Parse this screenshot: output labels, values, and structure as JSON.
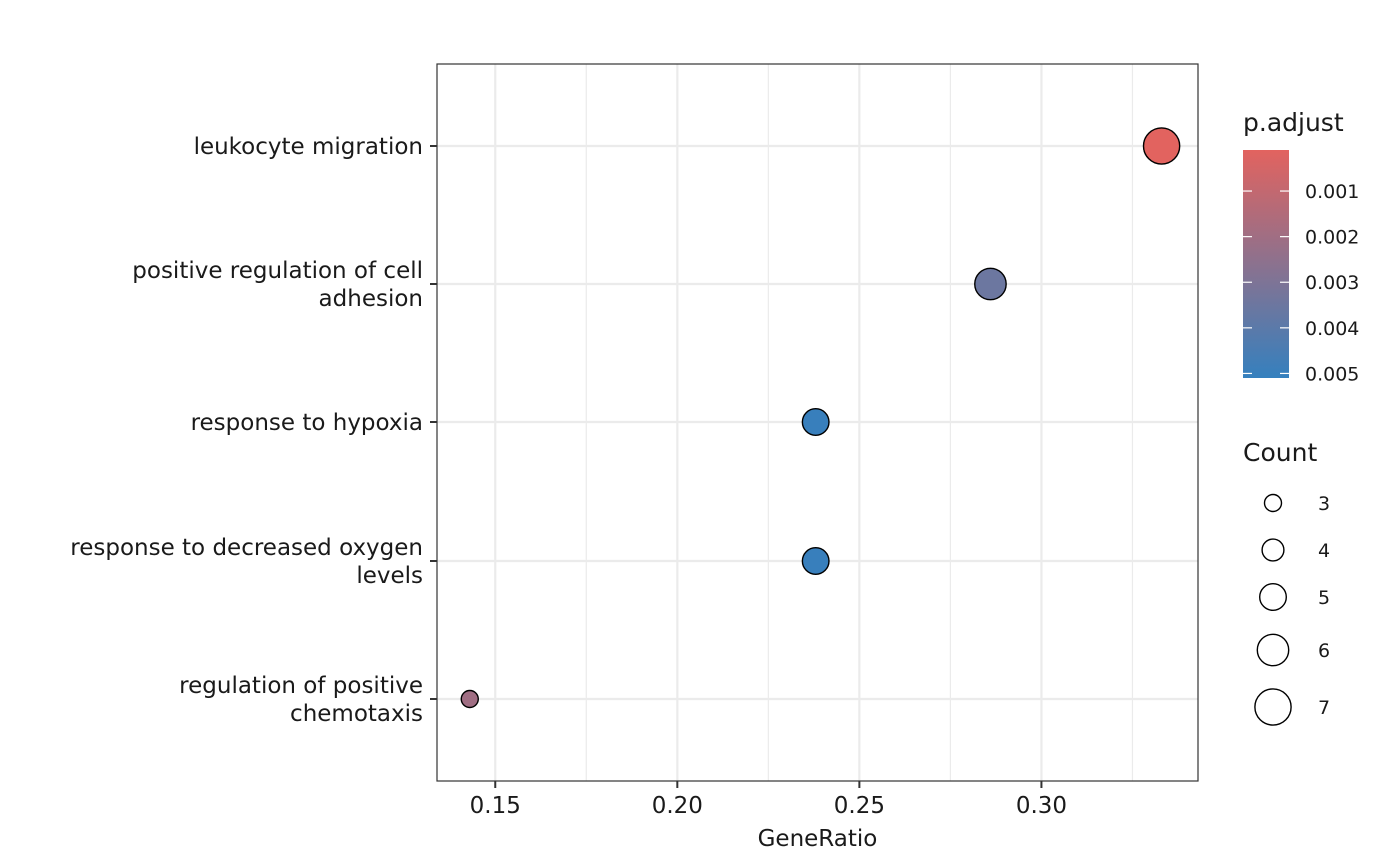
{
  "chart_data": {
    "type": "scatter",
    "xlabel": "GeneRatio",
    "ylabel": "",
    "xlim": [
      0.134,
      0.343
    ],
    "x_ticks": [
      {
        "value": 0.15,
        "label": "0.15"
      },
      {
        "value": 0.2,
        "label": "0.20"
      },
      {
        "value": 0.25,
        "label": "0.25"
      },
      {
        "value": 0.3,
        "label": "0.30"
      }
    ],
    "categories": [
      {
        "lines": [
          "leukocyte migration"
        ]
      },
      {
        "lines": [
          "positive regulation of cell",
          "adhesion"
        ]
      },
      {
        "lines": [
          "response to hypoxia"
        ]
      },
      {
        "lines": [
          "response to decreased oxygen",
          "levels"
        ]
      },
      {
        "lines": [
          "regulation of positive",
          "chemotaxis"
        ]
      }
    ],
    "points": [
      {
        "category_index": 0,
        "gene_ratio": 0.333,
        "count": 7,
        "p_adjust": 0.0001
      },
      {
        "category_index": 1,
        "gene_ratio": 0.286,
        "count": 6,
        "p_adjust": 0.0035
      },
      {
        "category_index": 2,
        "gene_ratio": 0.238,
        "count": 5,
        "p_adjust": 0.005
      },
      {
        "category_index": 3,
        "gene_ratio": 0.238,
        "count": 5,
        "p_adjust": 0.005
      },
      {
        "category_index": 4,
        "gene_ratio": 0.143,
        "count": 3,
        "p_adjust": 0.002
      }
    ],
    "grid": true,
    "color_legend": {
      "title": "p.adjust",
      "range": [
        0.0001,
        0.0051
      ],
      "low_color": "#E2635F",
      "high_color": "#3580BE",
      "ticks": [
        {
          "value": 0.001,
          "label": "0.001"
        },
        {
          "value": 0.002,
          "label": "0.002"
        },
        {
          "value": 0.003,
          "label": "0.003"
        },
        {
          "value": 0.004,
          "label": "0.004"
        },
        {
          "value": 0.005,
          "label": "0.005"
        }
      ]
    },
    "size_legend": {
      "title": "Count",
      "entries": [
        {
          "value": 3,
          "label": "3"
        },
        {
          "value": 4,
          "label": "4"
        },
        {
          "value": 5,
          "label": "5"
        },
        {
          "value": 6,
          "label": "6"
        },
        {
          "value": 7,
          "label": "7"
        }
      ]
    },
    "legend_position": "right"
  }
}
